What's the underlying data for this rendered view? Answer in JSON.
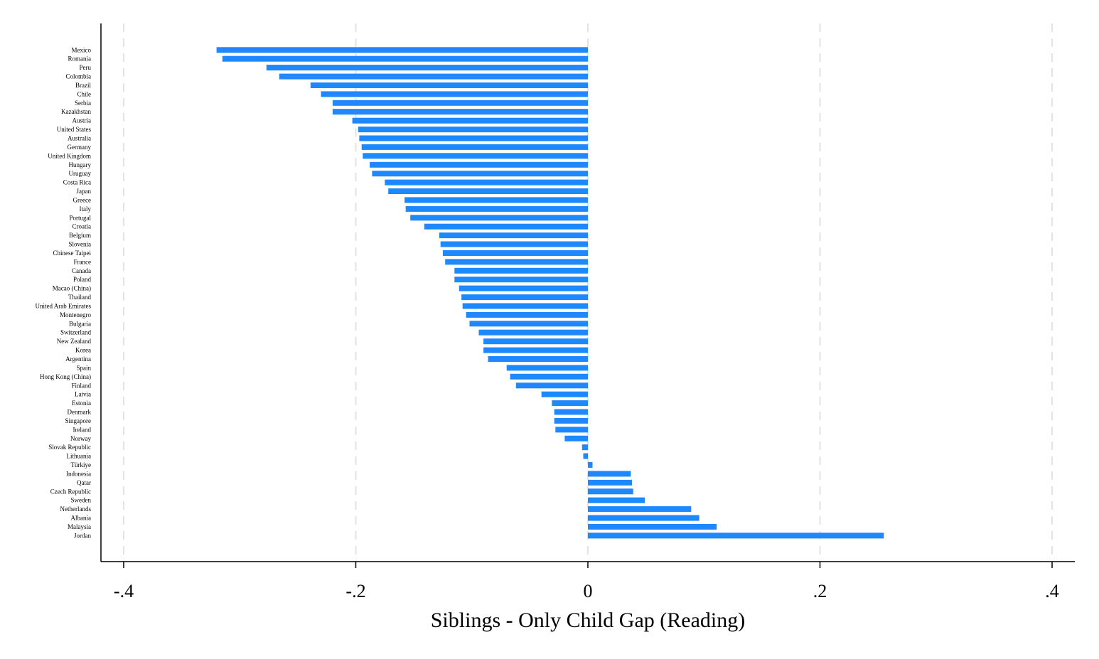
{
  "chart_data": {
    "type": "bar",
    "orientation": "horizontal",
    "xlabel": "Siblings - Only Child Gap (Reading)",
    "ylabel": "",
    "xlim": [
      -0.41,
      0.42
    ],
    "xticks": [
      -0.4,
      -0.2,
      0,
      0.2,
      0.4
    ],
    "xtick_labels": [
      "-.4",
      "-.2",
      "0",
      ".2",
      ".4"
    ],
    "grid": "vertical dashed",
    "bar_color": "#1e88ff",
    "categories": [
      "Mexico",
      "Romania",
      "Peru",
      "Colombia",
      "Brazil",
      "Chile",
      "Serbia",
      "Kazakhstan",
      "Austria",
      "United States",
      "Australia",
      "Germany",
      "United Kingdom",
      "Hungary",
      "Uruguay",
      "Costa Rica",
      "Japan",
      "Greece",
      "Italy",
      "Portugal",
      "Croatia",
      "Belgium",
      "Slovenia",
      "Chinese Taipei",
      "France",
      "Canada",
      "Poland",
      "Macao (China)",
      "Thailand",
      "United Arab Emirates",
      "Montenegro",
      "Bulgaria",
      "Switzerland",
      "New Zealand",
      "Korea",
      "Argentina",
      "Spain",
      "Hong Kong (China)",
      "Finland",
      "Latvia",
      "Estonia",
      "Denmark",
      "Singapore",
      "Ireland",
      "Norway",
      "Slovak Republic",
      "Lithuania",
      "Türkiye",
      "Indonesia",
      "Qatar",
      "Czech Republic",
      "Sweden",
      "Netherlands",
      "Albania",
      "Malaysia",
      "Jordan"
    ],
    "values": [
      -0.32,
      -0.315,
      -0.277,
      -0.266,
      -0.239,
      -0.23,
      -0.22,
      -0.22,
      -0.203,
      -0.198,
      -0.197,
      -0.195,
      -0.194,
      -0.188,
      -0.186,
      -0.175,
      -0.172,
      -0.158,
      -0.157,
      -0.153,
      -0.141,
      -0.128,
      -0.127,
      -0.125,
      -0.123,
      -0.115,
      -0.115,
      -0.111,
      -0.109,
      -0.108,
      -0.105,
      -0.102,
      -0.094,
      -0.09,
      -0.09,
      -0.086,
      -0.07,
      -0.067,
      -0.062,
      -0.04,
      -0.031,
      -0.029,
      -0.029,
      -0.028,
      -0.02,
      -0.005,
      -0.004,
      0.004,
      0.037,
      0.038,
      0.039,
      0.049,
      0.089,
      0.096,
      0.111,
      0.255
    ]
  }
}
